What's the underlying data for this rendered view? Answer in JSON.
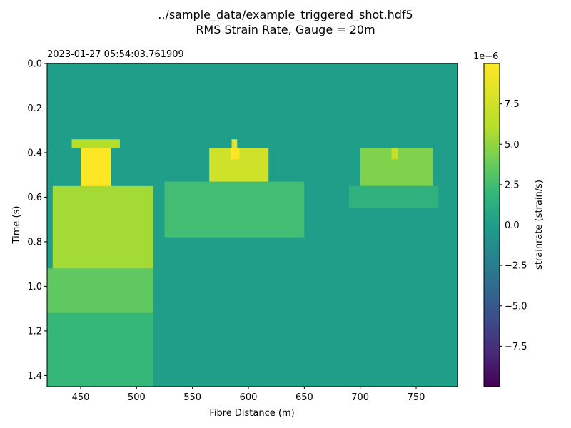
{
  "chart_data": {
    "type": "heatmap",
    "title_line1": "../sample_data/example_triggered_shot.hdf5",
    "title_line2": "RMS Strain Rate, Gauge = 20m",
    "timestamp": "2023-01-27 05:54:03.761909",
    "xlabel": "Fibre Distance (m)",
    "ylabel": "Time (s)",
    "xlim": [
      420,
      787
    ],
    "ylim": [
      0,
      1.45
    ],
    "y_inverted": true,
    "x_ticks": [
      "450",
      "500",
      "550",
      "600",
      "650",
      "700",
      "750"
    ],
    "y_ticks": [
      "0.0",
      "0.2",
      "0.4",
      "0.6",
      "0.8",
      "1.0",
      "1.2",
      "1.4"
    ],
    "colorbar": {
      "label": "strainrate (strain/s)",
      "exponent": "1e−6",
      "range": [
        -1e-05,
        1e-05
      ],
      "ticks": [
        "7.5",
        "5.0",
        "2.5",
        "0.0",
        "−2.5",
        "−5.0",
        "−7.5"
      ],
      "tick_values": [
        7.5e-06,
        5e-06,
        2.5e-06,
        0,
        -2.5e-06,
        -5e-06,
        -7.5e-06
      ],
      "colormap": "viridis"
    },
    "background_value": 0,
    "features": [
      {
        "x": [
          450,
          477
        ],
        "t": [
          0.38,
          0.77
        ],
        "value": 1e-05
      },
      {
        "x": [
          442,
          485
        ],
        "t": [
          0.34,
          0.38
        ],
        "value": 6e-06
      },
      {
        "x": [
          425,
          515
        ],
        "t": [
          0.55,
          0.92
        ],
        "value": 5.5e-06
      },
      {
        "x": [
          420,
          515
        ],
        "t": [
          0.92,
          1.12
        ],
        "value": 3.5e-06
      },
      {
        "x": [
          420,
          515
        ],
        "t": [
          1.12,
          1.45
        ],
        "value": 2e-06
      },
      {
        "x": [
          565,
          618
        ],
        "t": [
          0.38,
          0.55
        ],
        "value": 7.5e-06
      },
      {
        "x": [
          584,
          592
        ],
        "t": [
          0.38,
          0.43
        ],
        "value": 1e-05
      },
      {
        "x": [
          585,
          590
        ],
        "t": [
          0.34,
          0.38
        ],
        "value": 8.5e-06
      },
      {
        "x": [
          525,
          650
        ],
        "t": [
          0.53,
          0.78
        ],
        "value": 2.5e-06
      },
      {
        "x": [
          700,
          765
        ],
        "t": [
          0.38,
          0.55
        ],
        "value": 4.5e-06
      },
      {
        "x": [
          728,
          734
        ],
        "t": [
          0.38,
          0.43
        ],
        "value": 7e-06
      },
      {
        "x": [
          690,
          770
        ],
        "t": [
          0.55,
          0.65
        ],
        "value": 1.5e-06
      }
    ],
    "colors": {
      "background": "#1f968b",
      "peak": "#fde725",
      "low": "#440154"
    }
  }
}
